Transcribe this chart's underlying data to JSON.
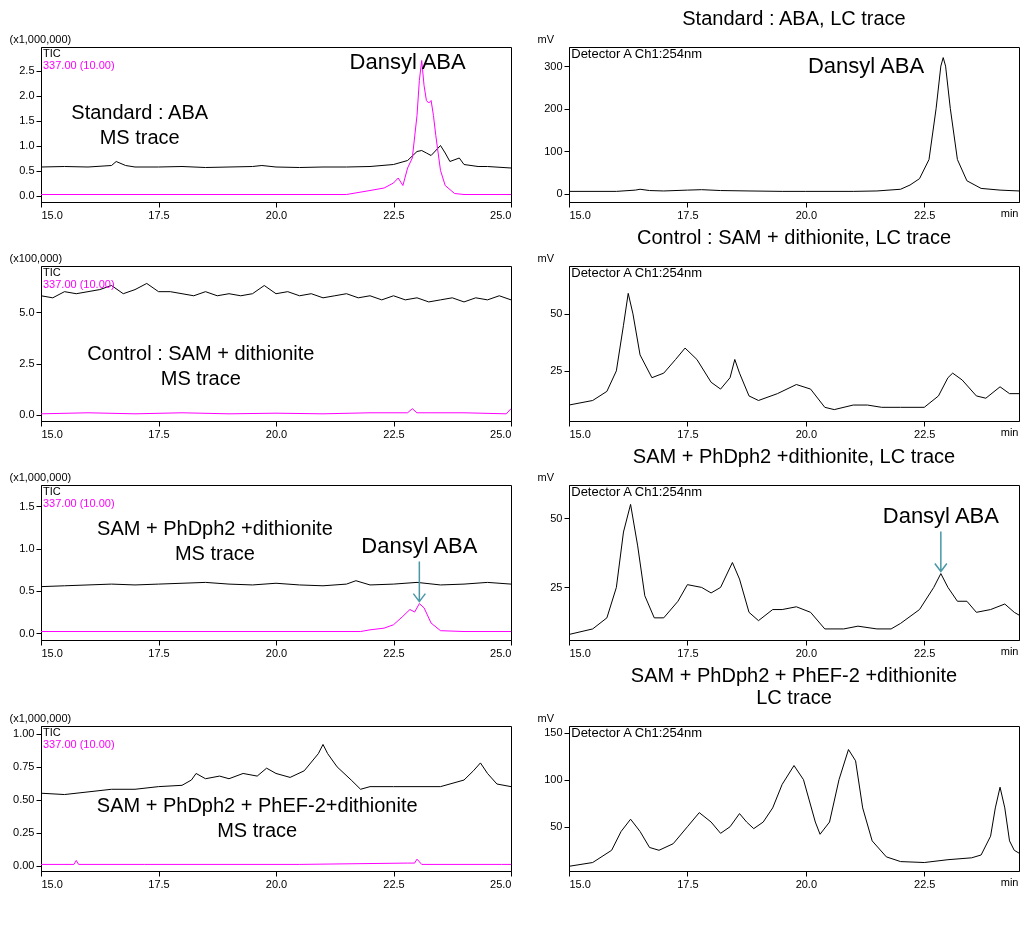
{
  "chart_data": [
    {
      "type": "line",
      "ylabel": "(x1,000,000)",
      "xlim": [
        15,
        25
      ],
      "ylim": [
        -0.13,
        2.97
      ],
      "xticks": [
        {
          "value": 15,
          "label": "15.0"
        },
        {
          "value": 17.5,
          "label": "17.5"
        },
        {
          "value": 20,
          "label": "20.0"
        },
        {
          "value": 22.5,
          "label": "22.5"
        },
        {
          "value": 25,
          "label": "25.0"
        }
      ],
      "yticks": [
        {
          "value": 0,
          "label": "0.0"
        },
        {
          "value": 0.5,
          "label": "0.5"
        },
        {
          "value": 1,
          "label": "1.0"
        },
        {
          "value": 1.5,
          "label": "1.5"
        },
        {
          "value": 2,
          "label": "2.0"
        },
        {
          "value": 2.5,
          "label": "2.5"
        }
      ],
      "legend": "top left",
      "annotations": [
        "Dansyl ABA",
        "Standard : ABA\nMS trace"
      ],
      "series": [
        {
          "name": "TIC",
          "color": "#000000",
          "x": [
            15,
            15.5,
            16,
            16.5,
            16.6,
            16.8,
            17,
            17.5,
            18,
            18.5,
            19,
            19.5,
            19.7,
            20,
            20.5,
            21,
            21.5,
            22,
            22.5,
            22.8,
            23,
            23.1,
            23.2,
            23.3,
            23.5,
            23.6,
            23.7,
            23.9,
            24,
            24.3,
            24.5,
            25
          ],
          "values": [
            0.57,
            0.58,
            0.57,
            0.6,
            0.68,
            0.6,
            0.57,
            0.57,
            0.58,
            0.56,
            0.57,
            0.58,
            0.6,
            0.57,
            0.56,
            0.57,
            0.57,
            0.58,
            0.62,
            0.7,
            0.88,
            0.9,
            0.85,
            0.8,
            1.0,
            0.85,
            0.68,
            0.75,
            0.62,
            0.58,
            0.58,
            0.55
          ]
        },
        {
          "name": "337.00 (10.00)",
          "color": "#ff00ff",
          "x": [
            15,
            17,
            19,
            21,
            21.5,
            22,
            22.3,
            22.5,
            22.6,
            22.7,
            22.8,
            22.9,
            23,
            23.05,
            23.1,
            23.15,
            23.2,
            23.25,
            23.3,
            23.35,
            23.4,
            23.5,
            23.6,
            23.8,
            24,
            25
          ],
          "values": [
            0.02,
            0.02,
            0.02,
            0.02,
            0.02,
            0.1,
            0.15,
            0.25,
            0.35,
            0.2,
            0.55,
            0.75,
            1.6,
            2.3,
            2.7,
            2.2,
            1.9,
            1.85,
            1.9,
            1.6,
            1.2,
            0.5,
            0.2,
            0.04,
            0.02,
            0.02
          ]
        }
      ]
    },
    {
      "type": "line",
      "title": "Standard : ABA, LC trace",
      "xlabel": "min",
      "ylabel": "mV",
      "xlim": [
        15,
        24.5
      ],
      "ylim": [
        -20,
        345
      ],
      "xticks": [
        {
          "value": 15,
          "label": "15.0"
        },
        {
          "value": 17.5,
          "label": "17.5"
        },
        {
          "value": 20,
          "label": "20.0"
        },
        {
          "value": 22.5,
          "label": "22.5"
        }
      ],
      "yticks": [
        0,
        100,
        200,
        300
      ],
      "annotations": [
        "Detector A Ch1:254nm",
        "Dansyl ABA"
      ],
      "series": [
        {
          "color": "#000000",
          "x": [
            15,
            16,
            16.4,
            16.5,
            16.7,
            17,
            17.5,
            17.8,
            18.2,
            18.8,
            19.5,
            20,
            21,
            21.5,
            22,
            22.2,
            22.4,
            22.6,
            22.75,
            22.85,
            22.9,
            22.95,
            23.05,
            23.2,
            23.4,
            23.7,
            24.1,
            24.5
          ],
          "values": [
            5,
            5,
            8,
            10,
            7,
            6,
            8,
            9,
            7,
            6,
            5,
            5,
            5,
            6,
            10,
            20,
            35,
            80,
            200,
            300,
            320,
            300,
            200,
            80,
            30,
            12,
            8,
            6
          ]
        }
      ]
    },
    {
      "type": "line",
      "ylabel": "(x100,000)",
      "xlim": [
        15,
        25
      ],
      "ylim": [
        -0.3,
        7.25
      ],
      "xticks": [
        {
          "value": 15,
          "label": "15.0"
        },
        {
          "value": 17.5,
          "label": "17.5"
        },
        {
          "value": 20,
          "label": "20.0"
        },
        {
          "value": 22.5,
          "label": "22.5"
        },
        {
          "value": 25,
          "label": "25.0"
        }
      ],
      "yticks": [
        {
          "value": 0,
          "label": "0.0"
        },
        {
          "value": 2.5,
          "label": "2.5"
        },
        {
          "value": 5,
          "label": "5.0"
        }
      ],
      "legend": "top left",
      "annotations": [
        "Control : SAM + dithionite\nMS trace"
      ],
      "series": [
        {
          "name": "TIC",
          "color": "#000000",
          "x": [
            15,
            15.25,
            15.5,
            15.75,
            16,
            16.25,
            16.5,
            16.75,
            17,
            17.25,
            17.5,
            17.75,
            18,
            18.25,
            18.5,
            18.75,
            19,
            19.25,
            19.5,
            19.75,
            20,
            20.25,
            20.5,
            20.75,
            21,
            21.25,
            21.5,
            21.75,
            22,
            22.25,
            22.5,
            22.75,
            23,
            23.25,
            23.5,
            23.75,
            24,
            24.25,
            24.5,
            24.75,
            25
          ],
          "values": [
            5.8,
            5.7,
            6.0,
            5.9,
            6.0,
            6.1,
            6.3,
            5.9,
            6.1,
            6.4,
            6.0,
            6.0,
            5.9,
            5.8,
            6.0,
            5.8,
            5.9,
            5.8,
            5.9,
            6.3,
            5.9,
            6.0,
            5.8,
            5.9,
            5.7,
            5.8,
            5.9,
            5.7,
            5.8,
            5.6,
            5.8,
            5.6,
            5.7,
            5.5,
            5.6,
            5.7,
            5.5,
            5.7,
            5.6,
            5.8,
            5.6
          ]
        },
        {
          "name": "337.00 (10.00)",
          "color": "#ff00ff",
          "x": [
            15,
            16,
            17,
            18,
            19,
            20,
            21,
            22,
            22.8,
            22.9,
            23,
            24,
            24.9,
            25
          ],
          "values": [
            0.05,
            0.1,
            0.05,
            0.1,
            0.05,
            0.08,
            0.05,
            0.1,
            0.1,
            0.3,
            0.1,
            0.1,
            0.05,
            0.3
          ]
        }
      ]
    },
    {
      "type": "line",
      "title": "Control : SAM + dithionite, LC trace",
      "xlabel": "min",
      "ylabel": "mV",
      "xlim": [
        15,
        24.5
      ],
      "ylim": [
        3,
        71
      ],
      "xticks": [
        {
          "value": 15,
          "label": "15.0"
        },
        {
          "value": 17.5,
          "label": "17.5"
        },
        {
          "value": 20,
          "label": "20.0"
        },
        {
          "value": 22.5,
          "label": "22.5"
        }
      ],
      "yticks": [
        25,
        50
      ],
      "annotations": [
        "Detector A Ch1:254nm"
      ],
      "series": [
        {
          "color": "#000000",
          "x": [
            15,
            15.5,
            15.8,
            16,
            16.15,
            16.25,
            16.35,
            16.5,
            16.75,
            17,
            17.25,
            17.45,
            17.7,
            18,
            18.2,
            18.4,
            18.5,
            18.6,
            18.8,
            19,
            19.4,
            19.8,
            20.1,
            20.4,
            20.6,
            21,
            21.3,
            21.6,
            22,
            22.5,
            22.8,
            23,
            23.1,
            23.3,
            23.6,
            23.8,
            24.1,
            24.3,
            24.5
          ],
          "values": [
            10,
            12,
            16,
            25,
            45,
            59,
            50,
            32,
            22,
            24,
            30,
            35,
            30,
            20,
            17,
            22,
            30,
            24,
            14,
            12,
            15,
            19,
            17,
            9,
            8,
            10,
            10,
            9,
            9,
            9,
            14,
            22,
            24,
            21,
            14,
            13,
            18,
            15,
            15
          ]
        }
      ]
    },
    {
      "type": "line",
      "ylabel": "(x1,000,000)",
      "xlim": [
        15,
        25
      ],
      "ylim": [
        -0.08,
        1.75
      ],
      "xticks": [
        {
          "value": 15,
          "label": "15.0"
        },
        {
          "value": 17.5,
          "label": "17.5"
        },
        {
          "value": 20,
          "label": "20.0"
        },
        {
          "value": 22.5,
          "label": "22.5"
        },
        {
          "value": 25,
          "label": "25.0"
        }
      ],
      "yticks": [
        {
          "value": 0,
          "label": "0.0"
        },
        {
          "value": 0.5,
          "label": "0.5"
        },
        {
          "value": 1,
          "label": "1.0"
        },
        {
          "value": 1.5,
          "label": "1.5"
        }
      ],
      "legend": "top left",
      "annotations": [
        "SAM + PhDph2 +dithionite\nMS trace",
        {
          "text": "Dansyl ABA",
          "x": 23.05,
          "y": 0.35
        }
      ],
      "series": [
        {
          "name": "TIC",
          "color": "#000000",
          "x": [
            15,
            15.5,
            16,
            16.5,
            17,
            17.5,
            18,
            18.5,
            19,
            19.5,
            20,
            20.5,
            21,
            21.5,
            21.7,
            22,
            22.5,
            23,
            23.5,
            24,
            24.5,
            25
          ],
          "values": [
            0.55,
            0.56,
            0.57,
            0.58,
            0.57,
            0.58,
            0.59,
            0.6,
            0.58,
            0.57,
            0.59,
            0.57,
            0.56,
            0.58,
            0.62,
            0.57,
            0.58,
            0.6,
            0.57,
            0.58,
            0.6,
            0.58
          ]
        },
        {
          "name": "337.00 (10.00)",
          "color": "#ff00ff",
          "x": [
            15,
            18,
            21.8,
            22,
            22.3,
            22.5,
            22.7,
            22.85,
            22.95,
            23.05,
            23.15,
            23.3,
            23.5,
            24,
            25
          ],
          "values": [
            0.02,
            0.02,
            0.02,
            0.04,
            0.06,
            0.1,
            0.2,
            0.28,
            0.25,
            0.35,
            0.3,
            0.12,
            0.03,
            0.02,
            0.02
          ]
        }
      ]
    },
    {
      "type": "line",
      "title": "SAM + PhDph2 +dithionite, LC trace",
      "xlabel": "min",
      "ylabel": "mV",
      "xlim": [
        15,
        24.5
      ],
      "ylim": [
        6,
        62
      ],
      "xticks": [
        {
          "value": 15,
          "label": "15.0"
        },
        {
          "value": 17.5,
          "label": "17.5"
        },
        {
          "value": 20,
          "label": "20.0"
        },
        {
          "value": 22.5,
          "label": "22.5"
        }
      ],
      "yticks": [
        25,
        50
      ],
      "annotations": [
        "Detector A Ch1:254nm",
        {
          "text": "Dansyl ABA",
          "x": 22.85,
          "y": 30
        }
      ],
      "series": [
        {
          "color": "#000000",
          "x": [
            15,
            15.5,
            15.8,
            16,
            16.15,
            16.3,
            16.45,
            16.6,
            16.8,
            17,
            17.3,
            17.5,
            17.8,
            18,
            18.2,
            18.45,
            18.6,
            18.8,
            19,
            19.3,
            19.5,
            19.8,
            20.1,
            20.4,
            20.8,
            21.1,
            21.5,
            21.8,
            22,
            22.4,
            22.7,
            22.85,
            23,
            23.2,
            23.4,
            23.6,
            23.9,
            24.2,
            24.4,
            24.5
          ],
          "values": [
            8,
            10,
            14,
            25,
            45,
            55,
            40,
            22,
            14,
            14,
            20,
            26,
            25,
            23,
            25,
            34,
            28,
            16,
            13,
            17,
            17,
            18,
            16,
            10,
            10,
            11,
            10,
            10,
            12,
            17,
            25,
            30,
            25,
            20,
            20,
            16,
            17,
            19,
            16,
            15
          ]
        }
      ]
    },
    {
      "type": "line",
      "ylabel": "(x1,000,000)",
      "xlim": [
        15,
        25
      ],
      "ylim": [
        -0.04,
        1.06
      ],
      "xticks": [
        {
          "value": 15,
          "label": "15.0"
        },
        {
          "value": 17.5,
          "label": "17.5"
        },
        {
          "value": 20,
          "label": "20.0"
        },
        {
          "value": 22.5,
          "label": "22.5"
        },
        {
          "value": 25,
          "label": "25.0"
        }
      ],
      "yticks": [
        {
          "value": 0,
          "label": "0.00"
        },
        {
          "value": 0.25,
          "label": "0.25"
        },
        {
          "value": 0.5,
          "label": "0.50"
        },
        {
          "value": 0.75,
          "label": "0.75"
        },
        {
          "value": 1,
          "label": "1.00"
        }
      ],
      "legend": "top left",
      "annotations": [
        "SAM + PhDph2 + PhEF-2+dithionite\nMS trace"
      ],
      "series": [
        {
          "name": "TIC",
          "color": "#000000",
          "x": [
            15,
            15.5,
            16,
            16.5,
            17,
            17.5,
            18,
            18.2,
            18.3,
            18.5,
            18.8,
            19,
            19.3,
            19.6,
            19.8,
            20,
            20.3,
            20.6,
            20.9,
            21,
            21.1,
            21.3,
            21.6,
            21.8,
            22,
            22.5,
            23,
            23.5,
            24,
            24.2,
            24.35,
            24.5,
            24.7,
            25
          ],
          "values": [
            0.55,
            0.54,
            0.56,
            0.58,
            0.58,
            0.6,
            0.61,
            0.65,
            0.7,
            0.66,
            0.68,
            0.66,
            0.7,
            0.68,
            0.74,
            0.7,
            0.67,
            0.72,
            0.85,
            0.92,
            0.85,
            0.75,
            0.65,
            0.58,
            0.6,
            0.6,
            0.6,
            0.6,
            0.65,
            0.72,
            0.78,
            0.7,
            0.62,
            0.6
          ]
        },
        {
          "name": "337.00 (10.00)",
          "color": "#ff00ff",
          "x": [
            15,
            15.7,
            15.75,
            15.8,
            17.2,
            20.5,
            22.8,
            22.95,
            23,
            23.1,
            24.8,
            25
          ],
          "values": [
            0.01,
            0.01,
            0.04,
            0.01,
            0.01,
            0.01,
            0.02,
            0.02,
            0.05,
            0.01,
            0.01,
            0.01
          ]
        }
      ]
    },
    {
      "type": "line",
      "title": "SAM + PhDph2 + PhEF-2 +dithionite\nLC trace",
      "xlabel": "min",
      "ylabel": "mV",
      "xlim": [
        15,
        24.5
      ],
      "ylim": [
        3,
        157
      ],
      "xticks": [
        {
          "value": 15,
          "label": "15.0"
        },
        {
          "value": 17.5,
          "label": "17.5"
        },
        {
          "value": 20,
          "label": "20.0"
        },
        {
          "value": 22.5,
          "label": "22.5"
        }
      ],
      "yticks": [
        50,
        100,
        150
      ],
      "annotations": [
        "Detector A Ch1:254nm"
      ],
      "series": [
        {
          "color": "#000000",
          "x": [
            15,
            15.5,
            15.9,
            16.1,
            16.3,
            16.5,
            16.7,
            16.9,
            17.2,
            17.5,
            17.75,
            18,
            18.2,
            18.4,
            18.6,
            18.75,
            18.9,
            19.1,
            19.3,
            19.5,
            19.75,
            19.95,
            20.2,
            20.3,
            20.5,
            20.7,
            20.9,
            21.05,
            21.2,
            21.4,
            21.7,
            22,
            22.5,
            23,
            23.5,
            23.7,
            23.9,
            24,
            24.1,
            24.2,
            24.3,
            24.4,
            24.5
          ],
          "values": [
            8,
            12,
            25,
            45,
            58,
            45,
            28,
            25,
            32,
            50,
            65,
            55,
            43,
            50,
            64,
            55,
            48,
            55,
            70,
            95,
            115,
            100,
            55,
            42,
            55,
            100,
            132,
            120,
            70,
            35,
            18,
            13,
            12,
            15,
            17,
            20,
            40,
            70,
            92,
            70,
            35,
            25,
            22
          ]
        }
      ]
    }
  ]
}
